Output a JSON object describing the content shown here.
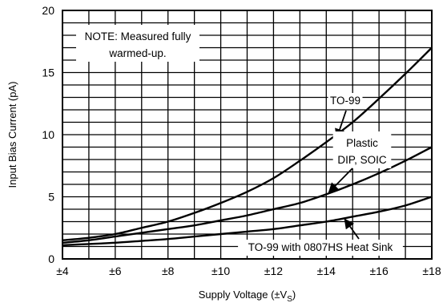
{
  "chart_data": {
    "type": "line",
    "title": "",
    "xlabel": "Supply Voltage (±V",
    "xlabel_sub": "S",
    "xlabel_close": ")",
    "ylabel": "Input Bias Current (pA)",
    "xlim": [
      4,
      18
    ],
    "ylim": [
      0,
      20
    ],
    "x_ticks": [
      4,
      6,
      8,
      10,
      12,
      14,
      16,
      18
    ],
    "x_tick_labels": [
      "±4",
      "±6",
      "±8",
      "±10",
      "±12",
      "±14",
      "±16",
      "±18"
    ],
    "y_ticks": [
      0,
      5,
      10,
      15,
      20
    ],
    "y_tick_labels": [
      "0",
      "5",
      "10",
      "15",
      "20"
    ],
    "grid": true,
    "note_lines": [
      "NOTE: Measured fully",
      "warmed-up."
    ],
    "series": [
      {
        "name": "TO-99",
        "x": [
          4,
          5,
          6,
          7,
          8,
          9,
          10,
          11,
          12,
          13,
          14,
          15,
          16,
          17,
          18
        ],
        "y": [
          1.5,
          1.7,
          2.0,
          2.5,
          3.0,
          3.7,
          4.5,
          5.4,
          6.5,
          7.9,
          9.4,
          11.0,
          12.9,
          14.9,
          17.0
        ]
      },
      {
        "name": "Plastic DIP, SOIC",
        "label_lines": [
          "Plastic",
          "DIP, SOIC"
        ],
        "x": [
          4,
          5,
          6,
          7,
          8,
          9,
          10,
          11,
          12,
          13,
          14,
          15,
          16,
          17,
          18
        ],
        "y": [
          1.3,
          1.5,
          1.8,
          2.1,
          2.4,
          2.7,
          3.1,
          3.5,
          4.0,
          4.5,
          5.2,
          6.0,
          6.9,
          7.9,
          9.0
        ]
      },
      {
        "name": "TO-99 with 0807HS Heat Sink",
        "x": [
          4,
          5,
          6,
          7,
          8,
          9,
          10,
          11,
          12,
          13,
          14,
          15,
          16,
          17,
          18
        ],
        "y": [
          1.1,
          1.2,
          1.3,
          1.45,
          1.6,
          1.8,
          2.0,
          2.2,
          2.4,
          2.7,
          3.0,
          3.4,
          3.8,
          4.3,
          5.0
        ]
      }
    ]
  }
}
